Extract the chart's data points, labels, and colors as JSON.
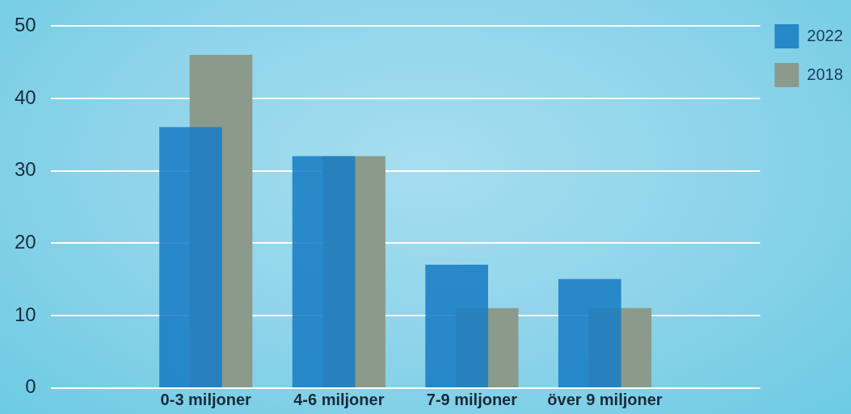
{
  "chart_data": {
    "type": "bar",
    "categories": [
      "0-3 miljoner",
      "4-6 miljoner",
      "7-9 miljoner",
      "över 9 miljoner"
    ],
    "series": [
      {
        "name": "2022",
        "color": "#1a7dc4",
        "values": [
          36,
          32,
          17,
          15
        ]
      },
      {
        "name": "2018",
        "color": "#8c9a8c",
        "values": [
          46,
          32,
          11,
          11
        ]
      }
    ],
    "ylim": [
      0,
      50
    ],
    "yticks": [
      0,
      10,
      20,
      30,
      40,
      50
    ],
    "grid": "y",
    "legend": "top right"
  }
}
